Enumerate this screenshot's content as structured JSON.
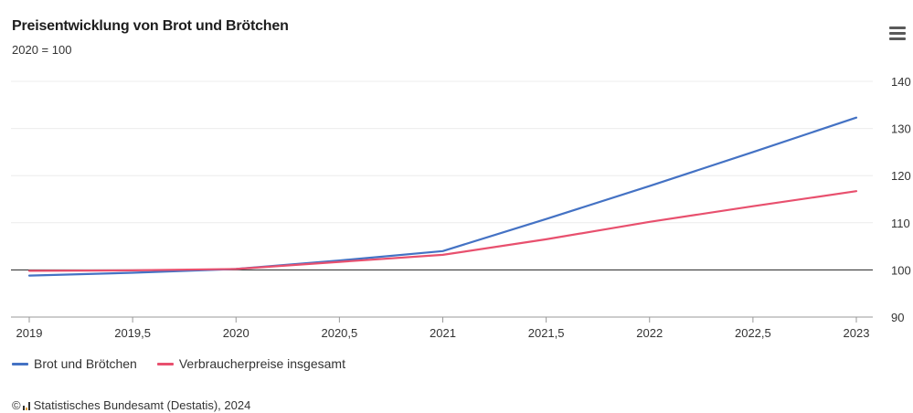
{
  "menu": {
    "icon": "hamburger-menu-icon"
  },
  "chart_data": {
    "type": "line",
    "title": "Preisentwicklung von Brot und Brötchen",
    "subtitle": "2020 = 100",
    "xlabel": "",
    "ylabel": "",
    "x_ticks": [
      "2019",
      "2019,5",
      "2020",
      "2020,5",
      "2021",
      "2021,5",
      "2022",
      "2022,5",
      "2023"
    ],
    "y_ticks": [
      "90",
      "100",
      "110",
      "120",
      "130",
      "140"
    ],
    "xlim": [
      2019,
      2023
    ],
    "ylim": [
      90,
      140
    ],
    "reference_line": 100,
    "grid": true,
    "legend": "bottom-left",
    "series": [
      {
        "name": "Brot und Brötchen",
        "color": "#4472c4",
        "x": [
          2019,
          2019.5,
          2020,
          2020.5,
          2021,
          2021.5,
          2022,
          2022.5,
          2023
        ],
        "values": [
          98.8,
          99.4,
          100.2,
          102.0,
          104.0,
          110.8,
          117.8,
          125.0,
          132.3
        ]
      },
      {
        "name": "Verbraucherpreise insgesamt",
        "color": "#e8506e",
        "x": [
          2019,
          2019.5,
          2020,
          2020.5,
          2021,
          2021.5,
          2022,
          2022.5,
          2023
        ],
        "values": [
          99.8,
          99.9,
          100.2,
          101.7,
          103.2,
          106.5,
          110.2,
          113.5,
          116.7
        ]
      }
    ]
  },
  "credits": {
    "copyright": "©",
    "text": "Statistisches Bundesamt (Destatis), 2024"
  }
}
